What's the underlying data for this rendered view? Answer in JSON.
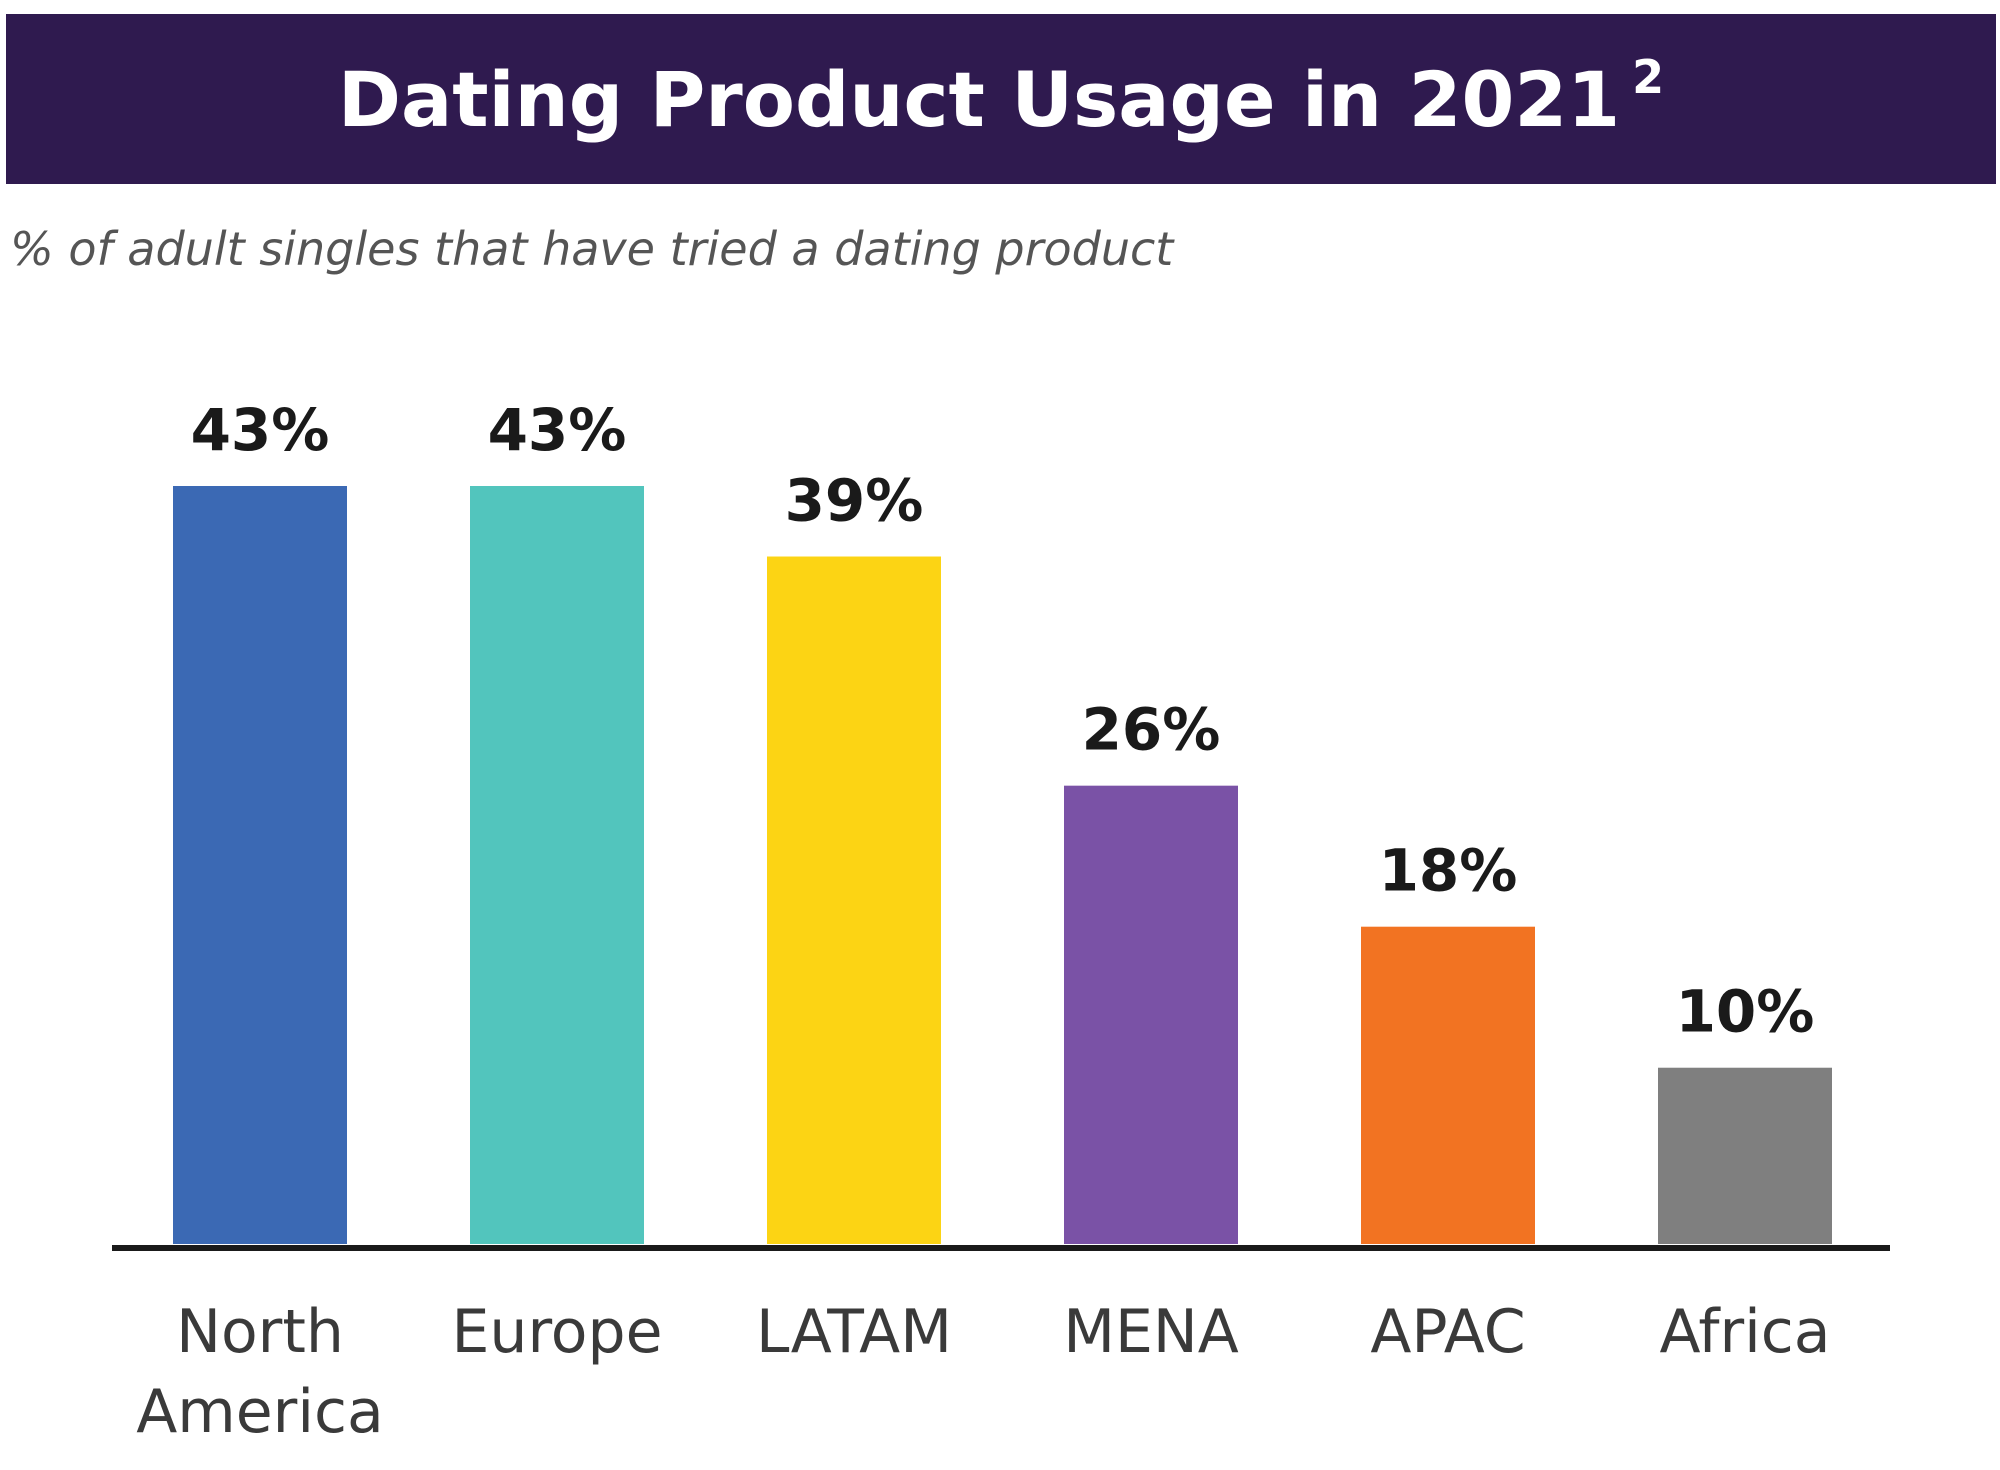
{
  "header": {
    "title": "Dating Product Usage in 2021",
    "title_superscript": "2",
    "subtitle": "% of adult singles that have tried a dating product"
  },
  "chart_data": {
    "type": "bar",
    "categories": [
      [
        "North",
        "America"
      ],
      [
        "Europe"
      ],
      [
        "LATAM"
      ],
      [
        "MENA"
      ],
      [
        "APAC"
      ],
      [
        "Africa"
      ]
    ],
    "values": [
      43,
      43,
      39,
      26,
      18,
      10
    ],
    "data_labels": [
      "43%",
      "43%",
      "39%",
      "26%",
      "18%",
      "10%"
    ],
    "colors": [
      "#3b69b4",
      "#52c5bd",
      "#fcd414",
      "#7a52a6",
      "#f27322",
      "#7f7f7f"
    ],
    "title": "Dating Product Usage in 2021",
    "subtitle": "% of adult singles that have tried a dating product",
    "xlabel": "",
    "ylabel": "",
    "ylim": [
      0,
      43
    ],
    "grid": false,
    "legend": "none"
  }
}
